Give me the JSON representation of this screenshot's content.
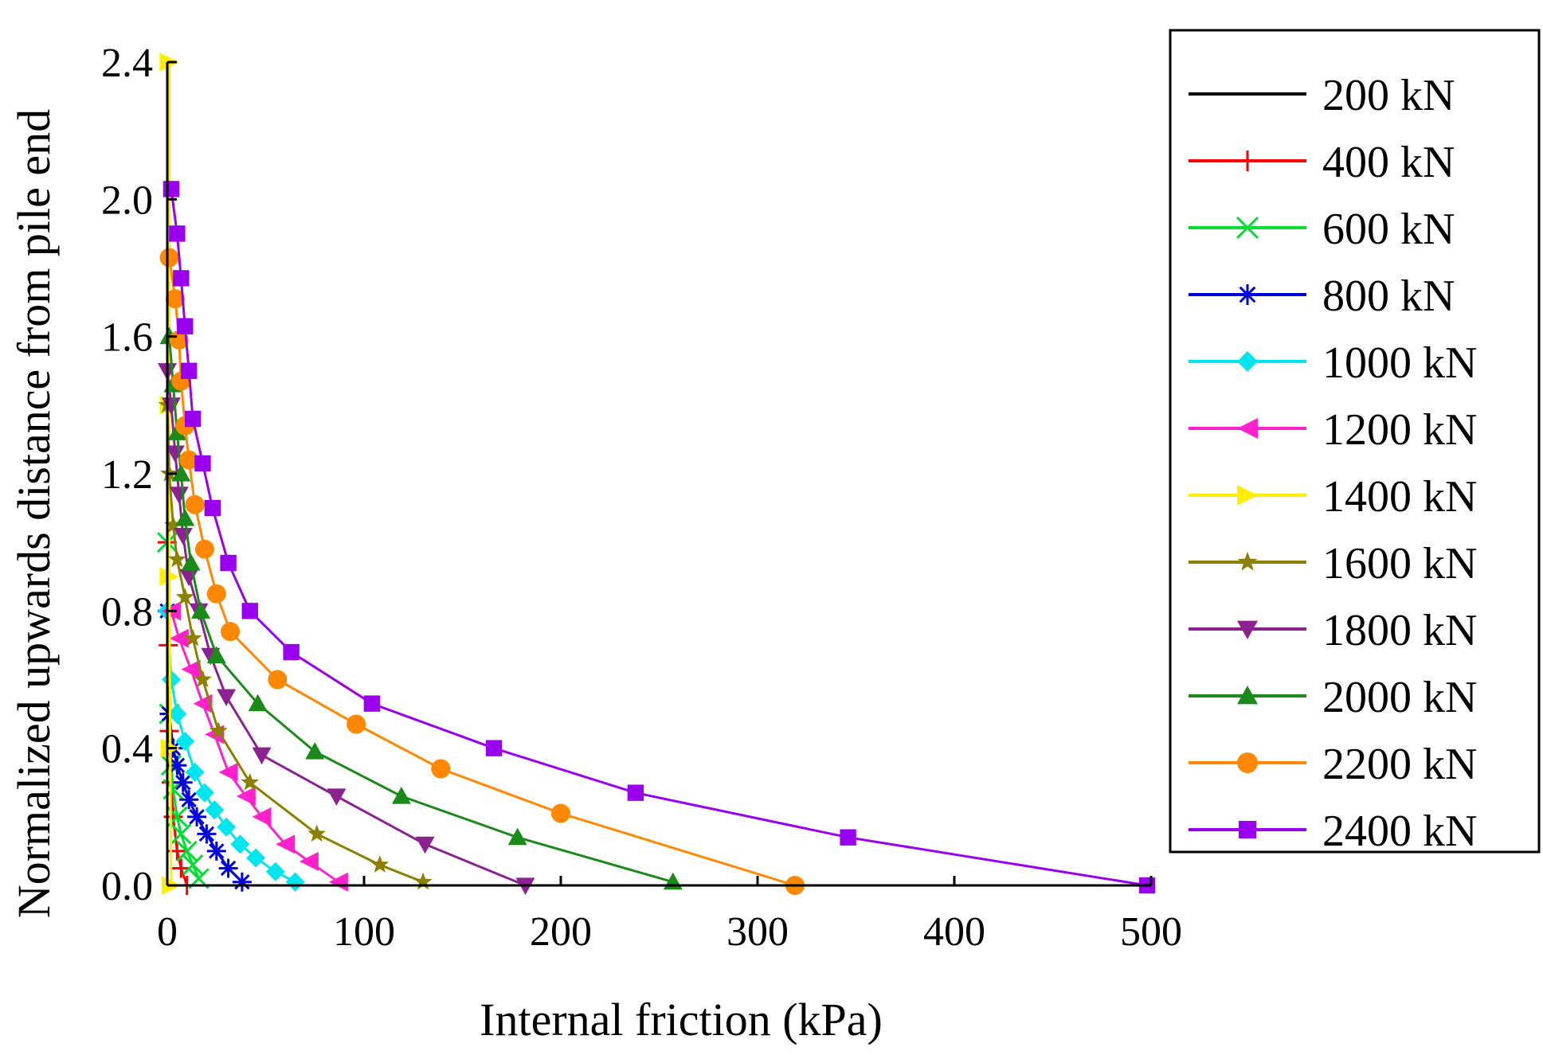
{
  "chart_data": {
    "type": "line",
    "title": "",
    "xlabel": "Internal friction  (kPa)",
    "ylabel": "Normalized upwards distance from pile end",
    "xlim": [
      0,
      500
    ],
    "ylim": [
      0,
      2.4
    ],
    "xticks": [
      "0",
      "100",
      "200",
      "300",
      "400",
      "500"
    ],
    "xtick_values": [
      0,
      100,
      200,
      300,
      400,
      500
    ],
    "yticks": [
      "0.0",
      "0.4",
      "0.8",
      "1.2",
      "1.6",
      "2.0",
      "2.4"
    ],
    "ytick_values": [
      0,
      0.4,
      0.8,
      1.2,
      1.6,
      2.0,
      2.4
    ],
    "grid": false,
    "legend_position": "right",
    "series": [
      {
        "name": "200 kN",
        "color": "#000000",
        "marker": "none",
        "points": [
          [
            0,
            0
          ],
          [
            0,
            2.4
          ]
        ]
      },
      {
        "name": "400 kN",
        "color": "#ff0000",
        "marker": "plus",
        "points": [
          [
            10,
            0
          ],
          [
            7,
            0.05
          ],
          [
            5,
            0.1
          ],
          [
            3,
            0.2
          ],
          [
            2,
            0.3
          ],
          [
            1,
            0.45
          ],
          [
            0.5,
            0.7
          ],
          [
            0,
            1.0
          ]
        ]
      },
      {
        "name": "600 kN",
        "color": "#00dd33",
        "marker": "x",
        "points": [
          [
            16,
            0.02
          ],
          [
            13,
            0.06
          ],
          [
            10,
            0.1
          ],
          [
            7,
            0.15
          ],
          [
            5,
            0.2
          ],
          [
            3,
            0.28
          ],
          [
            2,
            0.35
          ],
          [
            1,
            0.5
          ],
          [
            0,
            1.0
          ]
        ]
      },
      {
        "name": "800 kN",
        "color": "#0000dd",
        "marker": "asterisk",
        "points": [
          [
            38,
            0.01
          ],
          [
            31,
            0.05
          ],
          [
            25,
            0.1
          ],
          [
            20,
            0.15
          ],
          [
            15,
            0.2
          ],
          [
            11,
            0.25
          ],
          [
            8,
            0.3
          ],
          [
            5,
            0.35
          ],
          [
            3,
            0.4
          ],
          [
            1,
            0.5
          ],
          [
            0,
            0.8
          ]
        ]
      },
      {
        "name": "1000 kN",
        "color": "#00e5ee",
        "marker": "diamond",
        "points": [
          [
            65,
            0.01
          ],
          [
            55,
            0.04
          ],
          [
            45,
            0.08
          ],
          [
            37,
            0.12
          ],
          [
            30,
            0.17
          ],
          [
            24,
            0.22
          ],
          [
            19,
            0.27
          ],
          [
            14,
            0.33
          ],
          [
            9,
            0.42
          ],
          [
            5,
            0.5
          ],
          [
            2,
            0.6
          ],
          [
            0,
            0.8
          ]
        ]
      },
      {
        "name": "1200 kN",
        "color": "#ff22cc",
        "marker": "triangle-left",
        "points": [
          [
            87,
            0.01
          ],
          [
            72,
            0.07
          ],
          [
            60,
            0.12
          ],
          [
            48,
            0.2
          ],
          [
            40,
            0.26
          ],
          [
            31,
            0.33
          ],
          [
            24,
            0.44
          ],
          [
            18,
            0.53
          ],
          [
            12,
            0.63
          ],
          [
            6,
            0.72
          ],
          [
            2,
            0.8
          ]
        ]
      },
      {
        "name": "1400 kN",
        "color": "#ffee00",
        "marker": "triangle-right",
        "points": [
          [
            2,
            0
          ],
          [
            1.5,
            0.4
          ],
          [
            1,
            0.9
          ],
          [
            1,
            1.4
          ],
          [
            1,
            2.4
          ]
        ]
      },
      {
        "name": "1600 kN",
        "color": "#8b8000",
        "marker": "star",
        "points": [
          [
            130,
            0.01
          ],
          [
            108,
            0.06
          ],
          [
            76,
            0.15
          ],
          [
            42,
            0.3
          ],
          [
            26,
            0.45
          ],
          [
            18,
            0.6
          ],
          [
            13,
            0.72
          ],
          [
            9,
            0.84
          ],
          [
            5,
            0.95
          ],
          [
            3,
            1.05
          ],
          [
            1,
            1.2
          ],
          [
            0,
            1.4
          ]
        ]
      },
      {
        "name": "1800 kN",
        "color": "#8b2290",
        "marker": "triangle-down",
        "points": [
          [
            182,
            0
          ],
          [
            131,
            0.12
          ],
          [
            86,
            0.26
          ],
          [
            48,
            0.38
          ],
          [
            30,
            0.55
          ],
          [
            22,
            0.67
          ],
          [
            16,
            0.8
          ],
          [
            11,
            0.9
          ],
          [
            8,
            1.02
          ],
          [
            6,
            1.14
          ],
          [
            4,
            1.26
          ],
          [
            2,
            1.4
          ],
          [
            0,
            1.5
          ]
        ]
      },
      {
        "name": "2000 kN",
        "color": "#1a8a1a",
        "marker": "triangle-up",
        "points": [
          [
            257,
            0.01
          ],
          [
            178,
            0.14
          ],
          [
            119,
            0.26
          ],
          [
            75,
            0.39
          ],
          [
            46,
            0.53
          ],
          [
            25,
            0.67
          ],
          [
            17,
            0.8
          ],
          [
            12,
            0.94
          ],
          [
            9,
            1.07
          ],
          [
            7,
            1.2
          ],
          [
            5,
            1.32
          ],
          [
            3,
            1.46
          ],
          [
            1,
            1.6
          ]
        ]
      },
      {
        "name": "2200 kN",
        "color": "#ff8800",
        "marker": "circle",
        "points": [
          [
            319,
            0.0
          ],
          [
            200,
            0.21
          ],
          [
            139,
            0.34
          ],
          [
            96,
            0.47
          ],
          [
            56,
            0.6
          ],
          [
            32,
            0.74
          ],
          [
            25,
            0.85
          ],
          [
            19,
            0.98
          ],
          [
            14,
            1.11
          ],
          [
            11,
            1.24
          ],
          [
            9,
            1.34
          ],
          [
            7,
            1.47
          ],
          [
            6,
            1.59
          ],
          [
            4,
            1.71
          ],
          [
            1,
            1.83
          ]
        ]
      },
      {
        "name": "2400 kN",
        "color": "#9900ee",
        "marker": "square",
        "points": [
          [
            498,
            0.0
          ],
          [
            346,
            0.14
          ],
          [
            238,
            0.27
          ],
          [
            166,
            0.4
          ],
          [
            104,
            0.53
          ],
          [
            63,
            0.68
          ],
          [
            42,
            0.8
          ],
          [
            31,
            0.94
          ],
          [
            23,
            1.1
          ],
          [
            18,
            1.23
          ],
          [
            13,
            1.36
          ],
          [
            11,
            1.5
          ],
          [
            9,
            1.63
          ],
          [
            7,
            1.77
          ],
          [
            5,
            1.9
          ],
          [
            2,
            2.03
          ]
        ]
      }
    ]
  }
}
